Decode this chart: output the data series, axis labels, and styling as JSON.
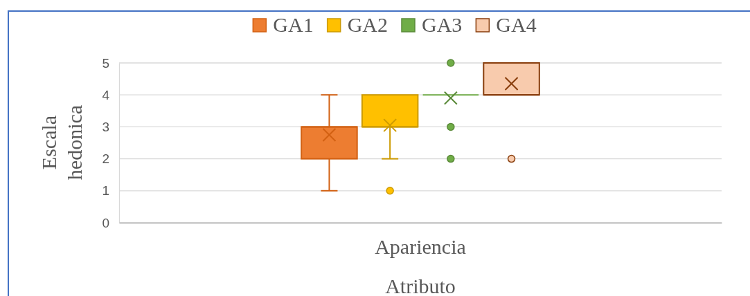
{
  "chart_data": {
    "type": "box",
    "categories": [
      "Apariencia"
    ],
    "xlabel": "Atributo",
    "ylabel": "Escala hedonica",
    "ylim": [
      0,
      5
    ],
    "yticks": [
      0,
      1,
      2,
      3,
      4,
      5
    ],
    "grid": "y",
    "legend": "top",
    "series": [
      {
        "name": "GA1",
        "color": "#ed7d31",
        "boxes": [
          {
            "low": 1,
            "q1": 2,
            "median": 3,
            "q3": 3,
            "high": 4,
            "mean": 2.75
          }
        ]
      },
      {
        "name": "GA2",
        "color": "#ffc000",
        "boxes": [
          {
            "low": 2,
            "q1": 3,
            "median": 3,
            "q3": 4,
            "high": 4,
            "mean": 3.05,
            "outliers": [
              1
            ]
          }
        ]
      },
      {
        "name": "GA3",
        "color": "#70ad47",
        "boxes": [
          {
            "low": 4,
            "q1": 4,
            "median": 4,
            "q3": 4,
            "high": 4,
            "mean": 3.9,
            "outliers": [
              5,
              3,
              2
            ]
          }
        ]
      },
      {
        "name": "GA4",
        "color": "#f8cbad",
        "boxes": [
          {
            "low": 4,
            "q1": 4,
            "median": 4,
            "q3": 5,
            "high": 5,
            "mean": 4.35,
            "outliers": [
              2
            ]
          }
        ]
      }
    ]
  }
}
